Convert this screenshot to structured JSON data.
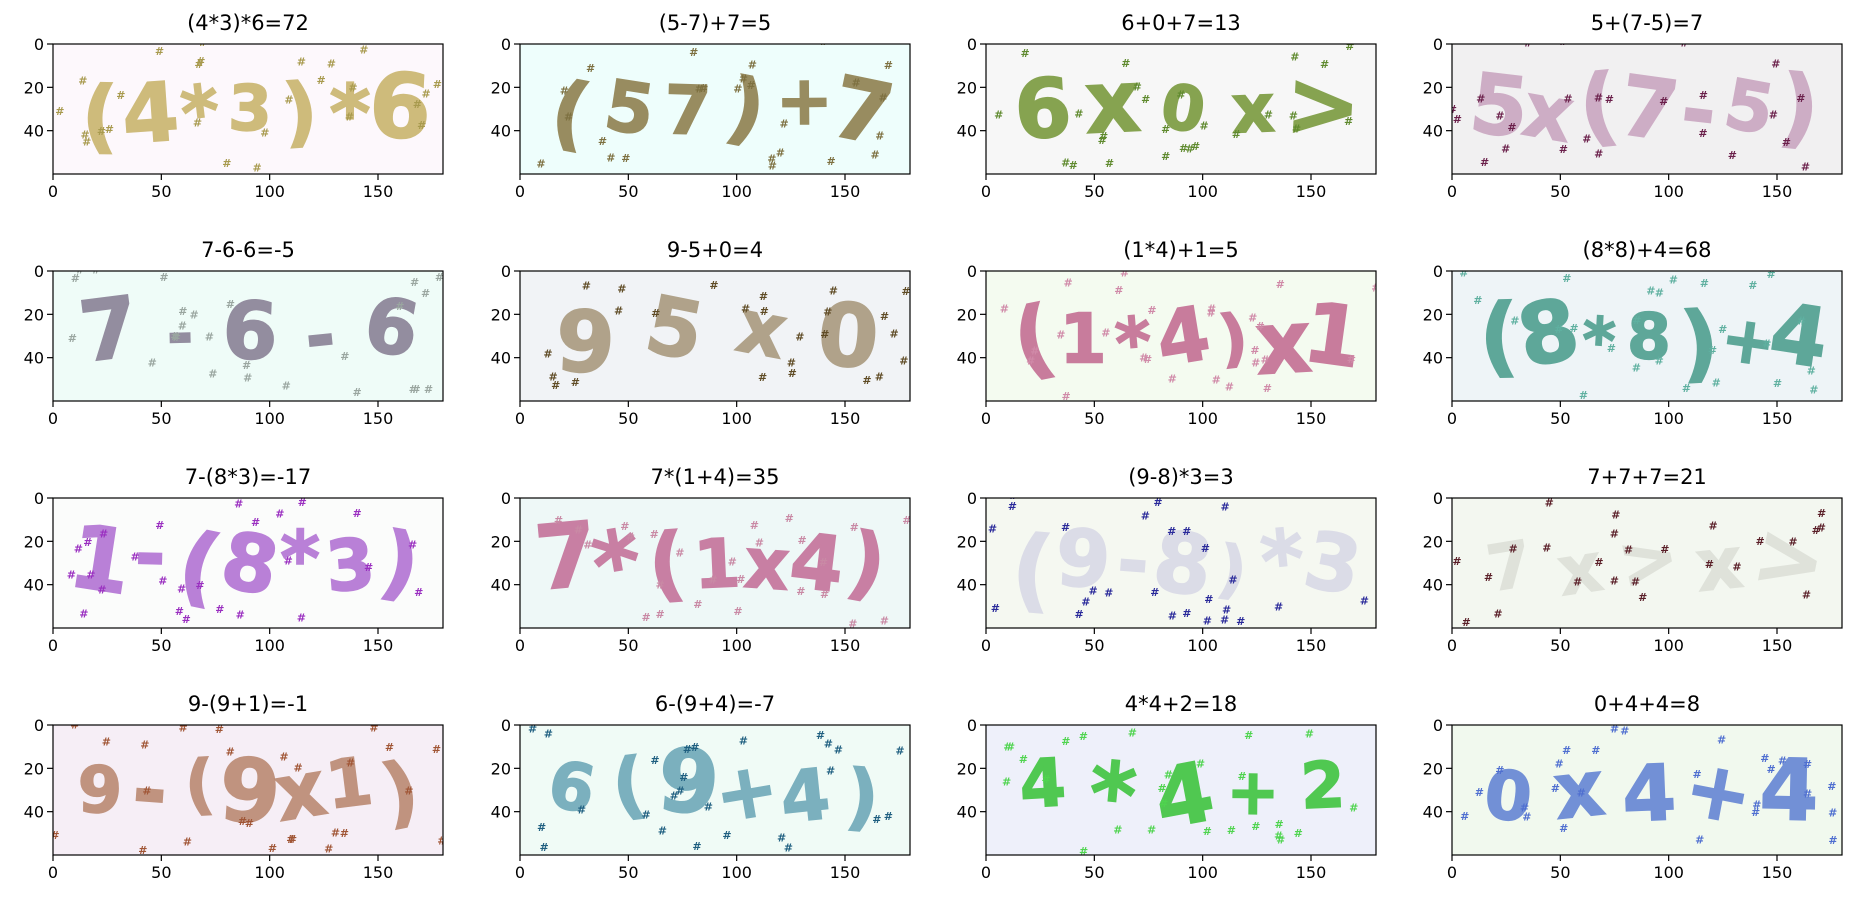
{
  "figure": {
    "x_ticks": [
      "0",
      "50",
      "100",
      "150"
    ],
    "y_ticks": [
      "0",
      "20",
      "40"
    ],
    "x_range": [
      0,
      180
    ],
    "y_range": [
      0,
      60
    ],
    "panels": [
      {
        "title": "(4*3)*6=72",
        "glyphs": "(4*3)*6",
        "bg": "#fdf8fc",
        "ink": "#c9b56e",
        "noise": "#a89a4e"
      },
      {
        "title": "(5-7)+7=5",
        "glyphs": "(57)+7",
        "bg": "#eefefc",
        "ink": "#8f8050",
        "noise": "#7d7040"
      },
      {
        "title": "6+0+7=13",
        "glyphs": "6x0x>",
        "bg": "#f7f7f7",
        "ink": "#7a9a3e",
        "noise": "#5f8a2e"
      },
      {
        "title": "5+(7-5)=7",
        "glyphs": "5x(7-5)",
        "bg": "#f1f0f1",
        "ink": "#caa6c1",
        "noise": "#6a1f4a"
      },
      {
        "title": "7-6-6=-5",
        "glyphs": "7-6-6",
        "bg": "#effcf8",
        "ink": "#8a8196",
        "noise": "#9aa6a0"
      },
      {
        "title": "9-5+0=4",
        "glyphs": "95x0",
        "bg": "#f1f3f6",
        "ink": "#a99a7f",
        "noise": "#5f4b25"
      },
      {
        "title": "(1*4)+1=5",
        "glyphs": "(1*4)x1",
        "bg": "#f4fbf0",
        "ink": "#c46f93",
        "noise": "#d08aa8"
      },
      {
        "title": "(8*8)+4=68",
        "glyphs": "(8*8)+4",
        "bg": "#eef4f7",
        "ink": "#4f9f8f",
        "noise": "#5fb0a0"
      },
      {
        "title": "7-(8*3)=-17",
        "glyphs": "1-(8*3)",
        "bg": "#fbfcfb",
        "ink": "#b273d4",
        "noise": "#9a2fc0"
      },
      {
        "title": "7*(1+4)=35",
        "glyphs": "7*(1x4)",
        "bg": "#eef8f7",
        "ink": "#c4739a",
        "noise": "#c98aa5"
      },
      {
        "title": "(9-8)*3=3",
        "glyphs": "(9-8)*3",
        "bg": "#f5f8f1",
        "ink": "#d9d9e6",
        "noise": "#2a2a9a"
      },
      {
        "title": "7+7+7=21",
        "glyphs": "7x>x>",
        "bg": "#f3f7f0",
        "ink": "#dde0d8",
        "noise": "#5a1f28"
      },
      {
        "title": "9-(9+1)=-1",
        "glyphs": "9-(9x1)",
        "bg": "#f6eef6",
        "ink": "#bb8a73",
        "noise": "#a05535"
      },
      {
        "title": "6-(9+4)=-7",
        "glyphs": "6(9+4)",
        "bg": "#f0fbf6",
        "ink": "#6fa8b8",
        "noise": "#1f5f80"
      },
      {
        "title": "4*4+2=18",
        "glyphs": "4*4+2",
        "bg": "#eef0fa",
        "ink": "#3fc43f",
        "noise": "#4fd44f"
      },
      {
        "title": "0+4+4=8",
        "glyphs": "0x4+4",
        "bg": "#f1f9ee",
        "ink": "#6585d4",
        "noise": "#4f6fd0"
      }
    ]
  }
}
